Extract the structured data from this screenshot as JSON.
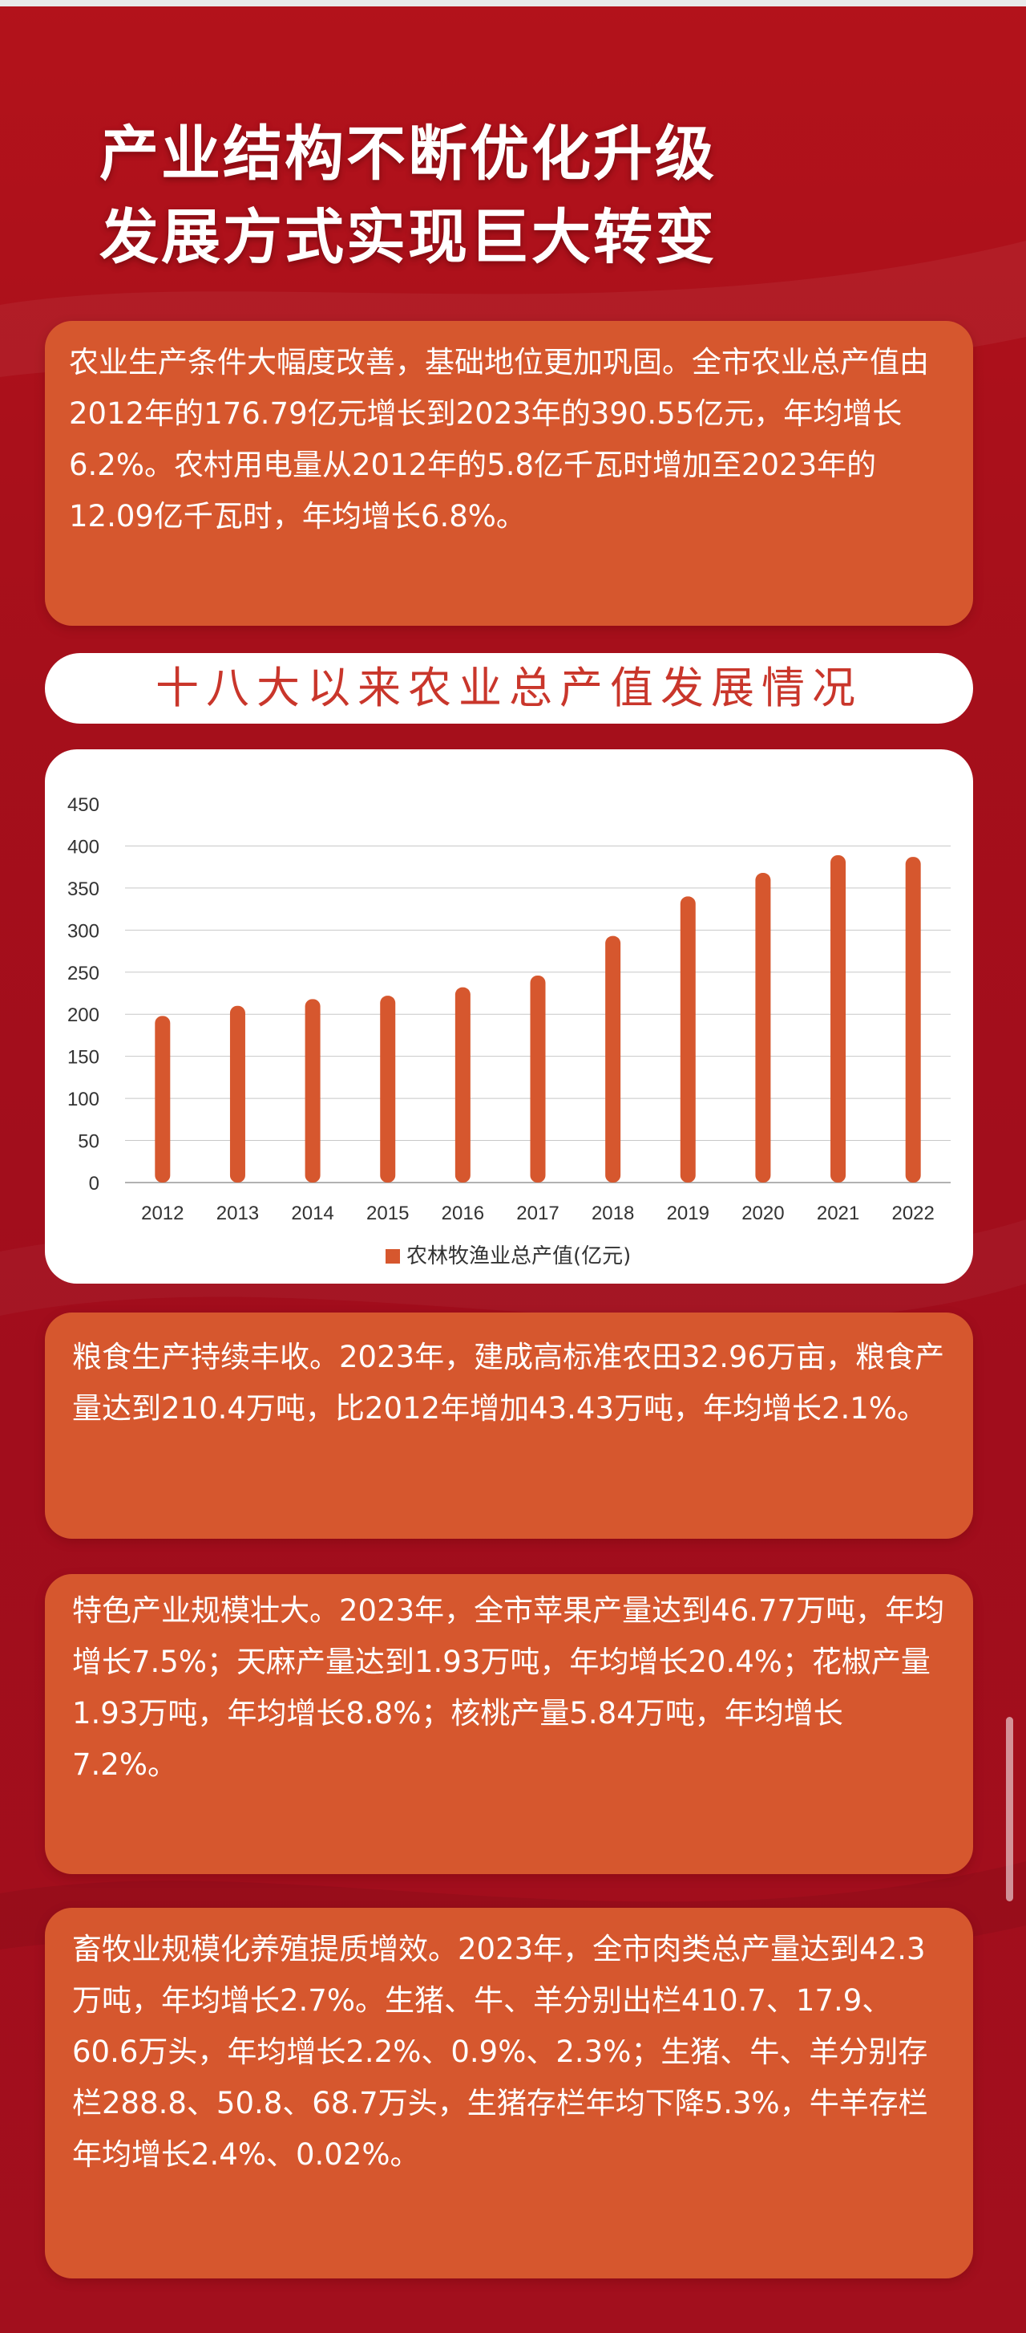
{
  "title": {
    "line1": "产业结构不断优化升级",
    "line2": "发展方式实现巨大转变"
  },
  "card1": {
    "text": "农业生产条件大幅度改善，基础地位更加巩固。全市农业总产值由2012年的176.79亿元增长到2023年的390.55亿元，年均增长6.2%。农村用电量从2012年的5.8亿千瓦时增加至2023年的12.09亿千瓦时，年均增长6.8%。"
  },
  "chart_section": {
    "heading": "十八大以来农业总产值发展情况"
  },
  "chart_data": {
    "type": "bar",
    "categories": [
      "2012",
      "2013",
      "2014",
      "2015",
      "2016",
      "2017",
      "2018",
      "2019",
      "2020",
      "2021",
      "2022"
    ],
    "series": [
      {
        "name": "农林牧渔业总产值(亿元)",
        "values": [
          198,
          210,
          218,
          222,
          232,
          246,
          293,
          340,
          368,
          389,
          387
        ],
        "color": "#d6572e"
      }
    ],
    "yticks": [
      0,
      50,
      100,
      150,
      200,
      250,
      300,
      350,
      400,
      450
    ],
    "ylim": [
      0,
      450
    ],
    "grid": true,
    "legend_position": "bottom-center"
  },
  "card2": {
    "text": "粮食生产持续丰收。2023年，建成高标准农田32.96万亩，粮食产量达到210.4万吨，比2012年增加43.43万吨，年均增长2.1%。"
  },
  "card3": {
    "text": "特色产业规模壮大。2023年，全市苹果产量达到46.77万吨，年均增长7.5%；天麻产量达到1.93万吨，年均增长20.4%；花椒产量1.93万吨，年均增长8.8%；核桃产量5.84万吨，年均增长7.2%。"
  },
  "card4": {
    "text": "畜牧业规模化养殖提质增效。2023年，全市肉类总产量达到42.3万吨，年均增长2.7%。生猪、牛、羊分别出栏410.7、17.9、60.6万头，年均增长2.2%、0.9%、2.3%；生猪、牛、羊分别存栏288.8、50.8、68.7万头，生猪存栏年均下降5.3%，牛羊存栏年均增长2.4%、0.02%。"
  },
  "colors": {
    "background": "#a50f1b",
    "card": "#d6572e",
    "accent_text": "#c9362b"
  }
}
